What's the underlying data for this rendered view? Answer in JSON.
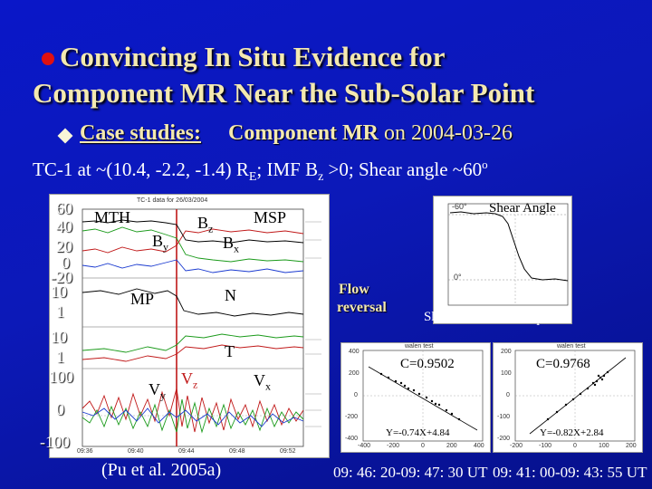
{
  "title": {
    "line1": "Convincing  In Situ Evidence for",
    "line2": "Component MR Near the Sub-Solar Point"
  },
  "case": {
    "label": "Case studies:",
    "sub_bold": "Component MR",
    "sub_rest": " on 2004-03-26"
  },
  "tc_line": {
    "prefix": "TC-1 at ~(10.4, -2.2, -1.4) R",
    "sub": "E",
    "mid": ";  IMF B",
    "sub2": "z",
    "rest": " >0; Shear angle ~60",
    "sup": "o"
  },
  "left_axis": [
    "60",
    "40",
    "20",
    "0",
    "-20",
    "10",
    "1",
    "10",
    "1",
    "100",
    "0",
    "-100"
  ],
  "main_plot": {
    "header": "TC-1 data for 26/03/2004",
    "mth": "MTH",
    "msp": "MSP",
    "mp": "MP",
    "bz": "B",
    "bz_sub": "z",
    "by": "B",
    "by_sub": "y",
    "bx": "B",
    "bx_sub": "x",
    "n": "N",
    "t": "T",
    "vy": "V",
    "vy_sub": "y",
    "vz": "V",
    "vz_sub": "z",
    "vx": "V",
    "vx_sub": "x",
    "time_ticks": [
      "09:36",
      "09:40",
      "09:44",
      "09:48",
      "09:52"
    ]
  },
  "shear_plot": {
    "title": "Shear Angle",
    "tick_top": "-60°",
    "tick_mid": "0°",
    "sheath": "Sheath",
    "sphere": "Sphere"
  },
  "flow_label": {
    "line1": "Flow",
    "line2": "reversal"
  },
  "scatter1": {
    "header": "walen test",
    "corr": "C=0.9502",
    "fit": "Y=-0.74X+4.84",
    "x_ticks": [
      "-400",
      "-200",
      "0",
      "200",
      "400"
    ],
    "y_ticks": [
      "400",
      "200",
      "0",
      "-200",
      "-400"
    ]
  },
  "scatter2": {
    "header": "walen test",
    "corr": "C=0.9768",
    "fit": "Y=-0.82X+2.84",
    "x_ticks": [
      "-200",
      "-100",
      "0",
      "100",
      "200"
    ],
    "y_ticks": [
      "200",
      "100",
      "0",
      "-100",
      "-200"
    ]
  },
  "citation": "(Pu et al. 2005a)",
  "ut1": "09: 46: 20-09: 47: 30 UT",
  "ut2": "09: 41: 00-09: 43: 55 UT",
  "colors": {
    "background": "#0a17c8",
    "title": "#f4e9b0",
    "bullet": "#e01010"
  }
}
